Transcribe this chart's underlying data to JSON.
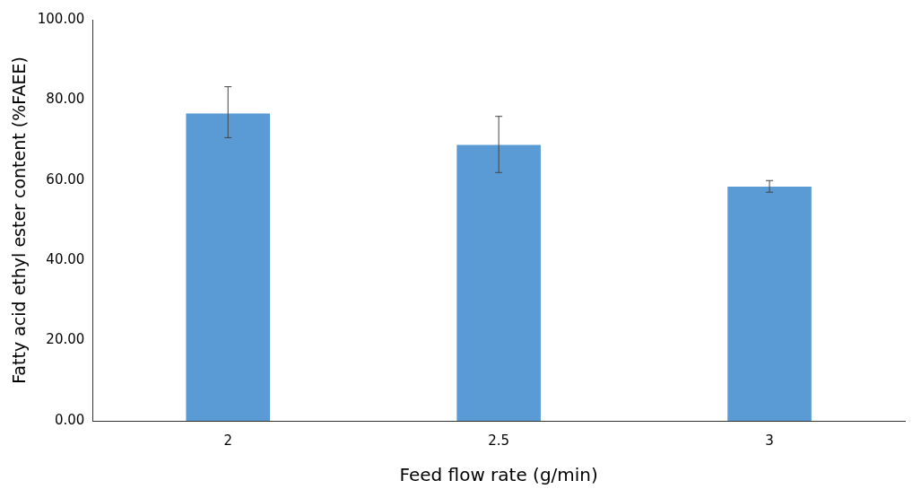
{
  "chart_data": {
    "type": "bar",
    "xlabel": "Feed flow rate (g/min)",
    "ylabel": "Fatty acid ethyl ester content (%FAEE)",
    "categories": [
      "2",
      "2.5",
      "3"
    ],
    "values": [
      76.6,
      68.8,
      58.4
    ],
    "errors": [
      [
        70.6,
        83.3
      ],
      [
        61.9,
        75.9
      ],
      [
        57.0,
        59.9
      ]
    ],
    "color": "#5b9bd5",
    "ylim": [
      0,
      100
    ],
    "yticks": [
      {
        "value": 0,
        "label": "0.00"
      },
      {
        "value": 20,
        "label": "20.00"
      },
      {
        "value": 40,
        "label": "40.00"
      },
      {
        "value": 60,
        "label": "60.00"
      },
      {
        "value": 80,
        "label": "80.00"
      },
      {
        "value": 100,
        "label": "100.00"
      }
    ],
    "grid": false,
    "legend": false
  }
}
